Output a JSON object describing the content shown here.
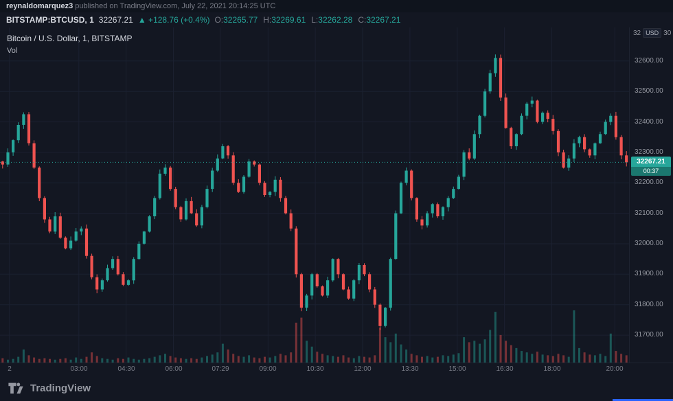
{
  "header": {
    "publisher": "reynaldomarquez3",
    "publish_info": " published on TradingView.com, July 22, 2021 20:14:25 UTC"
  },
  "symbol_bar": {
    "symbol": "BITSTAMP:BTCUSD, 1",
    "last": "32267.21",
    "change": "▲ +128.76 (+0.4%)",
    "o_label": "O:",
    "o_value": "32265.77",
    "h_label": "H:",
    "h_value": "32269.61",
    "l_label": "L:",
    "l_value": "32262.28",
    "c_label": "C:",
    "c_value": "32267.21"
  },
  "legend": {
    "title": "Bitcoin / U.S. Dollar, 1, BITSTAMP",
    "indicator": "Vol"
  },
  "axis_header": {
    "left": "32",
    "currency": "USD",
    "right": "30"
  },
  "price_badge": {
    "price": "32267.21",
    "countdown": "00:37"
  },
  "footer": {
    "brand": "TradingView"
  },
  "colors": {
    "up": "#26a69a",
    "down": "#ef5350",
    "bg": "#131722",
    "grid": "#1b2030",
    "text": "#d1d4dc",
    "muted": "#787b86",
    "accent_blue": "#2962ff"
  },
  "chart_data": {
    "type": "candlestick",
    "title": "Bitcoin / U.S. Dollar, 1, BITSTAMP",
    "symbol": "BTCUSD",
    "interval_minutes": 1,
    "currency": "USD",
    "legend": [
      "Vol"
    ],
    "grid": true,
    "time_start_hours": 0.5,
    "time_end_hours": 20.45,
    "price_min": 31610,
    "price_max": 32710,
    "open_first": 32270,
    "current_price": 32267.21,
    "countdown": "00:37",
    "day_open": 32265.77,
    "day_high": 32269.61,
    "day_low": 32262.28,
    "day_close": 32267.21,
    "y_ticks": [
      {
        "price": 32600,
        "label": "32600.00"
      },
      {
        "price": 32500,
        "label": "32500.00"
      },
      {
        "price": 32400,
        "label": "32400.00"
      },
      {
        "price": 32300,
        "label": "32300.00"
      },
      {
        "price": 32200,
        "label": "32200.00"
      },
      {
        "price": 32100,
        "label": "32100.00"
      },
      {
        "price": 32000,
        "label": "32000.00"
      },
      {
        "price": 31900,
        "label": "31900.00"
      },
      {
        "price": 31800,
        "label": "31800.00"
      },
      {
        "price": 31700,
        "label": "31700.00"
      }
    ],
    "x_ticks": [
      {
        "t": 0.8,
        "label": "2"
      },
      {
        "t": 3.0,
        "label": "03:00"
      },
      {
        "t": 4.5,
        "label": "04:30"
      },
      {
        "t": 6.0,
        "label": "06:00"
      },
      {
        "t": 7.483,
        "label": "07:29"
      },
      {
        "t": 9.0,
        "label": "09:00"
      },
      {
        "t": 10.5,
        "label": "10:30"
      },
      {
        "t": 12.0,
        "label": "12:00"
      },
      {
        "t": 13.5,
        "label": "13:30"
      },
      {
        "t": 15.0,
        "label": "15:00"
      },
      {
        "t": 16.5,
        "label": "16:30"
      },
      {
        "t": 18.0,
        "label": "18:00"
      },
      {
        "t": 20.0,
        "label": "20:00"
      }
    ],
    "closes": [
      32260,
      32300,
      32340,
      32390,
      32425,
      32330,
      32250,
      32150,
      32080,
      32040,
      32090,
      32020,
      31985,
      32010,
      32040,
      32050,
      31960,
      31890,
      31850,
      31880,
      31920,
      31950,
      31900,
      31865,
      31880,
      31950,
      32000,
      32040,
      32090,
      32150,
      32230,
      32250,
      32180,
      32120,
      32080,
      32140,
      32100,
      32060,
      32120,
      32180,
      32240,
      32280,
      32320,
      32290,
      32200,
      32170,
      32220,
      32270,
      32260,
      32200,
      32160,
      32170,
      32210,
      32150,
      32100,
      32050,
      31900,
      31790,
      31830,
      31900,
      31860,
      31830,
      31880,
      31950,
      31900,
      31850,
      31820,
      31880,
      31930,
      31900,
      31850,
      31800,
      31730,
      31790,
      31950,
      32100,
      32200,
      32240,
      32150,
      32080,
      32060,
      32100,
      32130,
      32090,
      32120,
      32150,
      32180,
      32220,
      32300,
      32280,
      32360,
      32420,
      32500,
      32560,
      32610,
      32480,
      32380,
      32320,
      32360,
      32420,
      32460,
      32470,
      32400,
      32430,
      32410,
      32370,
      32300,
      32250,
      32280,
      32330,
      32350,
      32310,
      32290,
      32330,
      32360,
      32400,
      32420,
      32350,
      32290,
      32267.21
    ],
    "volumes": [
      6,
      4,
      5,
      8,
      18,
      10,
      7,
      5,
      6,
      5,
      4,
      5,
      6,
      4,
      7,
      5,
      8,
      14,
      9,
      6,
      5,
      4,
      6,
      5,
      7,
      5,
      4,
      5,
      6,
      8,
      10,
      12,
      9,
      7,
      6,
      5,
      6,
      5,
      7,
      9,
      11,
      14,
      26,
      18,
      12,
      9,
      8,
      10,
      7,
      6,
      8,
      7,
      9,
      12,
      10,
      14,
      55,
      62,
      30,
      22,
      15,
      12,
      10,
      9,
      8,
      10,
      7,
      6,
      9,
      8,
      7,
      10,
      48,
      35,
      28,
      40,
      25,
      18,
      12,
      10,
      8,
      9,
      7,
      8,
      10,
      9,
      11,
      13,
      35,
      28,
      30,
      26,
      32,
      45,
      70,
      38,
      30,
      24,
      20,
      16,
      14,
      12,
      15,
      11,
      10,
      9,
      12,
      10,
      8,
      72,
      20,
      14,
      11,
      10,
      12,
      9,
      40,
      16,
      12,
      10
    ]
  }
}
